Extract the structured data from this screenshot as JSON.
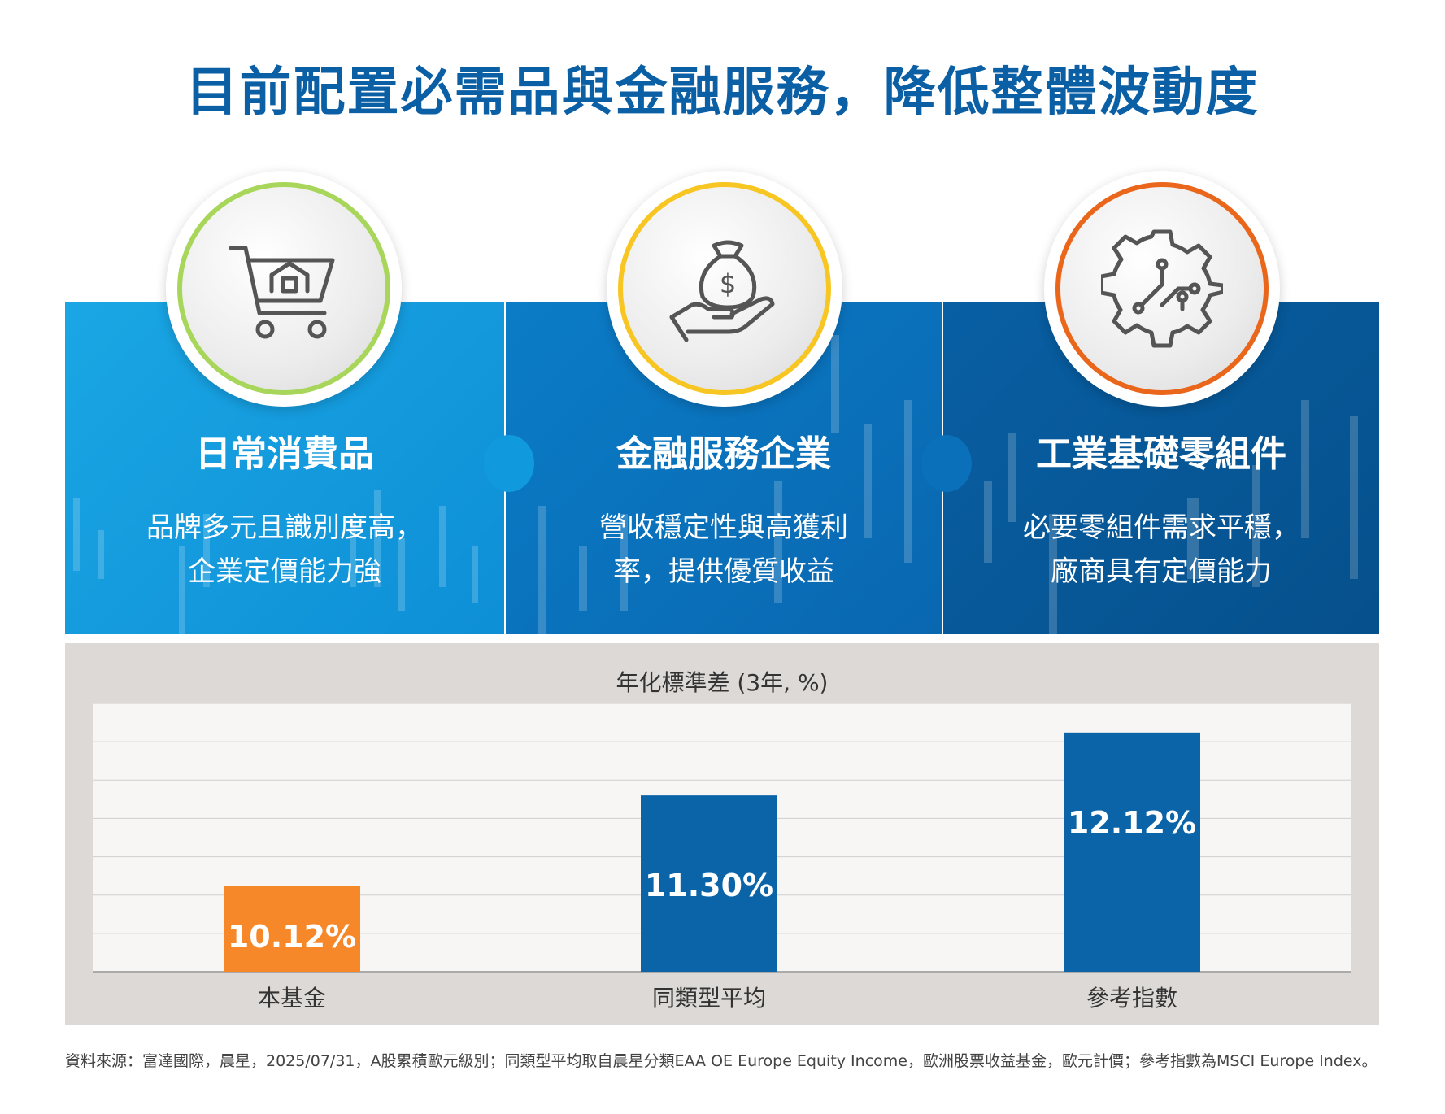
{
  "title": "目前配置必需品與金融服務，降低整體波動度",
  "panels": [
    {
      "title": "日常消費品",
      "line1": "品牌多元且識別度高，",
      "line2": "企業定價能力強",
      "icon": "shopping-cart-icon",
      "ring_color": "#a8d65a"
    },
    {
      "title": "金融服務企業",
      "line1": "營收穩定性與高獲利",
      "line2": "率，提供優質收益",
      "icon": "money-bag-hand-icon",
      "ring_color": "#f7c623"
    },
    {
      "title": "工業基礎零組件",
      "line1": "必要零組件需求平穩，",
      "line2": "廠商具有定價能力",
      "icon": "gear-circuit-icon",
      "ring_color": "#e9661b"
    }
  ],
  "chart_data": {
    "type": "bar",
    "title": "年化標準差 (3年, %)",
    "categories": [
      "本基金",
      "同類型平均",
      "參考指數"
    ],
    "values": [
      10.12,
      11.3,
      12.12
    ],
    "value_labels": [
      "10.12%",
      "11.30%",
      "12.12%"
    ],
    "bar_colors": [
      "#f7882a",
      "#0b64a8",
      "#0b64a8"
    ],
    "ylim": [
      9.0,
      12.5
    ],
    "gridlines": 7,
    "grid": true
  },
  "footnote": "資料來源：富達國際，晨星，2025/07/31，A股累積歐元級別；同類型平均取自晨星分類EAA OE Europe Equity Income，歐洲股票收益基金，歐元計價；參考指數為MSCI Europe Index。"
}
